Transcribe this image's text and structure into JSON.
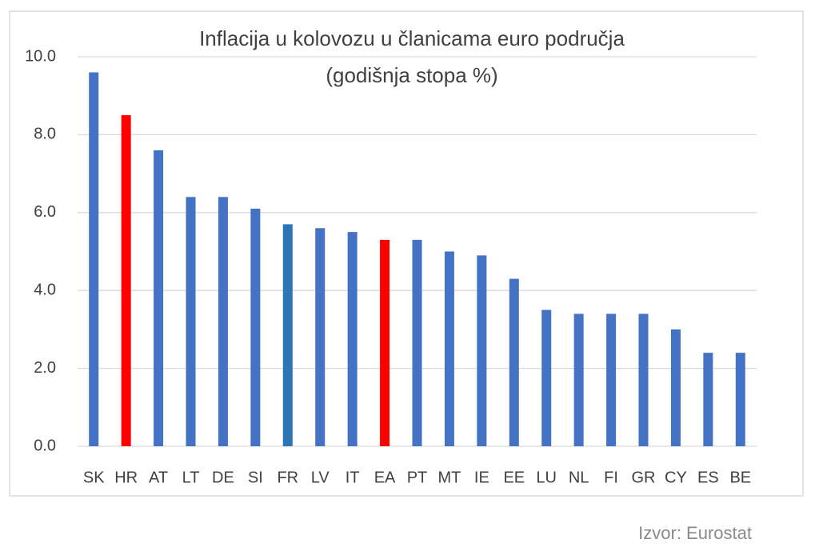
{
  "chart_data": {
    "type": "bar",
    "title": "Inflacija u kolovozu u članicama euro područja",
    "subtitle": "(godišnja stopa %)",
    "source": "Izvor: Eurostat",
    "categories": [
      "SK",
      "HR",
      "AT",
      "LT",
      "DE",
      "SI",
      "FR",
      "LV",
      "IT",
      "EA",
      "PT",
      "MT",
      "IE",
      "EE",
      "LU",
      "NL",
      "FI",
      "GR",
      "CY",
      "ES",
      "BE"
    ],
    "values": [
      9.6,
      8.5,
      7.6,
      6.4,
      6.4,
      6.1,
      5.7,
      5.6,
      5.5,
      5.3,
      5.3,
      5.0,
      4.9,
      4.3,
      3.5,
      3.4,
      3.4,
      3.4,
      3.0,
      2.4,
      2.4
    ],
    "colors": [
      "#4472c4",
      "#ff0000",
      "#4472c4",
      "#4472c4",
      "#4472c4",
      "#4472c4",
      "#2e75b6",
      "#4472c4",
      "#4472c4",
      "#ff0000",
      "#4472c4",
      "#4472c4",
      "#4472c4",
      "#4472c4",
      "#4472c4",
      "#4472c4",
      "#4472c4",
      "#4472c4",
      "#4472c4",
      "#4472c4",
      "#4472c4"
    ],
    "ylim": [
      0,
      10
    ],
    "yticks": [
      {
        "value": 0,
        "label": "0.0"
      },
      {
        "value": 2,
        "label": "2.0"
      },
      {
        "value": 4,
        "label": "4.0"
      },
      {
        "value": 6,
        "label": "6.0"
      },
      {
        "value": 8,
        "label": "8.0"
      },
      {
        "value": 10,
        "label": "10.0"
      }
    ],
    "grid": true
  }
}
